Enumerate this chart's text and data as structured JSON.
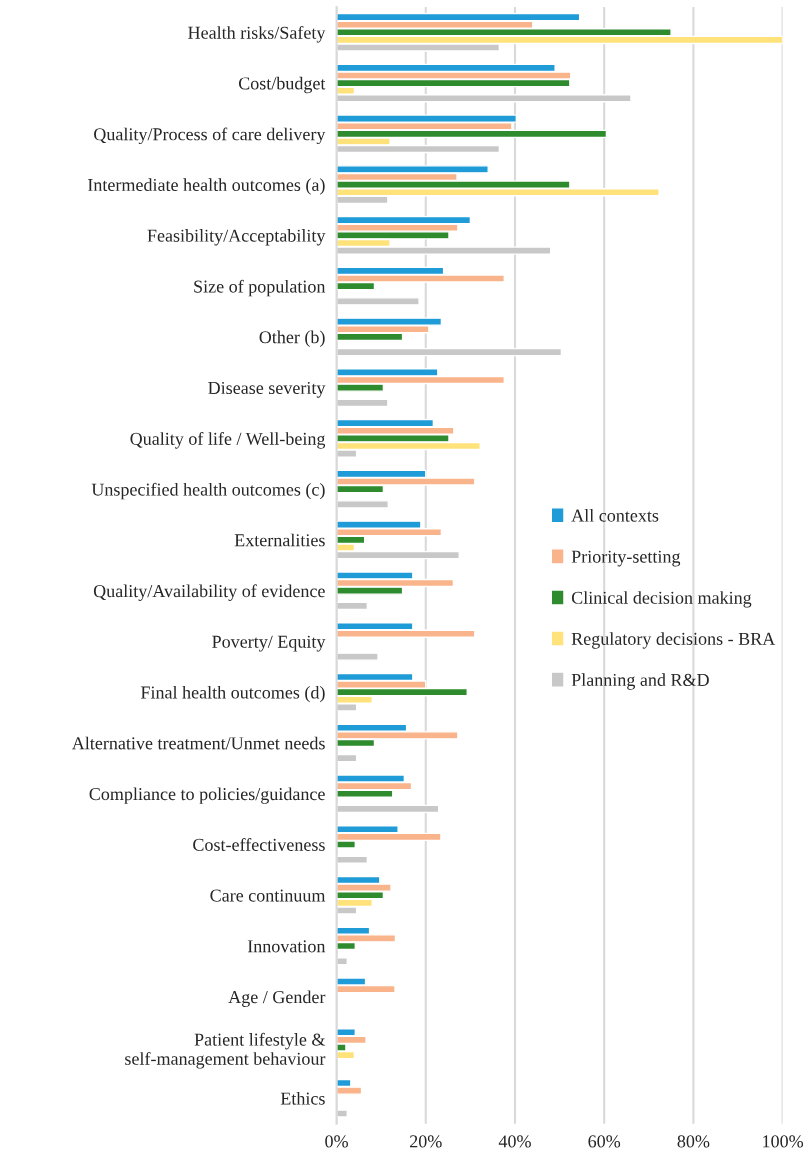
{
  "chart_data": {
    "type": "bar",
    "orientation": "horizontal",
    "categories": [
      "Health risks/Safety",
      "Cost/budget",
      "Quality/Process of care delivery",
      "Intermediate health outcomes (a)",
      "Feasibility/Acceptability",
      "Size of population",
      "Other (b)",
      "Disease severity",
      "Quality of life / Well-being",
      "Unspecified health outcomes (c)",
      "Externalities",
      "Quality/Availability of evidence",
      "Poverty/ Equity",
      "Final health outcomes (d)",
      "Alternative treatment/Unmet needs",
      "Compliance to policies/guidance",
      "Cost-effectiveness",
      "Care continuum",
      "Innovation",
      "Age / Gender",
      "Patient lifestyle &\nself-management behaviour",
      "Ethics"
    ],
    "series": [
      {
        "name": "All contexts",
        "color": "#1f9bd7",
        "values": [
          54.5,
          49,
          40.3,
          34,
          30,
          24,
          23.5,
          22.7,
          21.7,
          20,
          18.9,
          17.1,
          17.1,
          17.1,
          15.7,
          15.2,
          13.8,
          9.7,
          7.4,
          6.5,
          4.2,
          3.2
        ]
      },
      {
        "name": "Priority-setting",
        "color": "#f9b48c",
        "values": [
          44,
          52.5,
          39.3,
          27,
          27.2,
          37.6,
          20.7,
          37.6,
          26.3,
          31,
          23.5,
          26.2,
          31,
          20,
          27.2,
          16.8,
          23.4,
          12.2,
          13.2,
          13.1,
          6.6,
          5.6
        ]
      },
      {
        "name": "Clinical decision making",
        "color": "#2e8b2e",
        "values": [
          75,
          52.3,
          60.5,
          52.3,
          25.2,
          8.5,
          14.8,
          10.5,
          25.2,
          10.5,
          6.3,
          14.8,
          null,
          29.3,
          8.5,
          12.6,
          4.2,
          10.5,
          4.2,
          null,
          2.1,
          null
        ]
      },
      {
        "name": "Regulatory decisions - BRA",
        "color": "#ffe27a",
        "values": [
          100,
          4,
          12,
          72.3,
          12,
          null,
          null,
          null,
          32.2,
          null,
          4,
          null,
          null,
          8,
          null,
          null,
          null,
          8,
          null,
          null,
          4,
          null
        ]
      },
      {
        "name": "Planning and R&D",
        "color": "#c8c8c8",
        "values": [
          36.5,
          66,
          36.5,
          11.5,
          48,
          18.5,
          50.4,
          11.5,
          4.5,
          11.6,
          27.5,
          6.9,
          9.3,
          4.5,
          4.5,
          22.9,
          6.9,
          4.5,
          2.4,
          null,
          null,
          2.4
        ]
      }
    ],
    "xlim": [
      0,
      100
    ],
    "xticks": [
      {
        "value": 0,
        "label": "0%"
      },
      {
        "value": 20,
        "label": "20%"
      },
      {
        "value": 40,
        "label": "40%"
      },
      {
        "value": 60,
        "label": "60%"
      },
      {
        "value": 80,
        "label": "80%"
      },
      {
        "value": 100,
        "label": "100%"
      }
    ],
    "grid": "x",
    "legend": "right"
  }
}
